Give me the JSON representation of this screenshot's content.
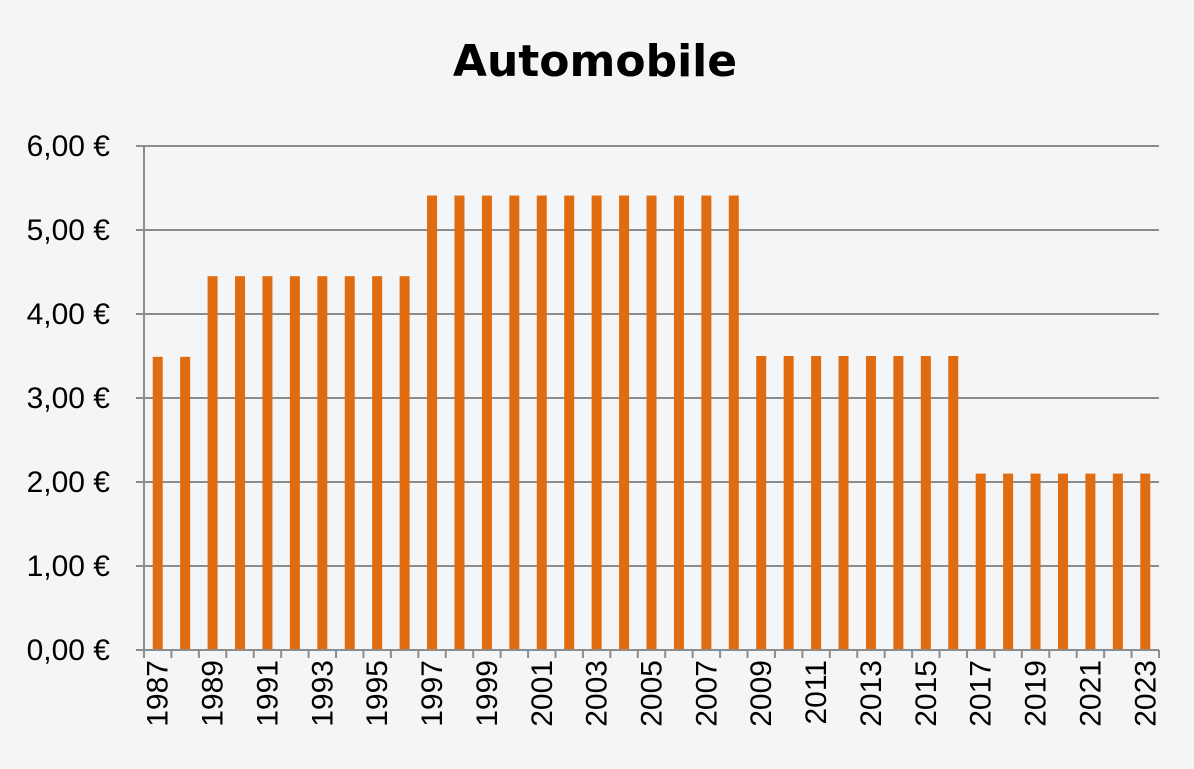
{
  "chart_data": {
    "type": "bar",
    "title": "Automobile",
    "xlabel": "",
    "ylabel": "",
    "categories": [
      "1987",
      "1988",
      "1989",
      "1990",
      "1991",
      "1992",
      "1993",
      "1994",
      "1995",
      "1996",
      "1997",
      "1998",
      "1999",
      "2000",
      "2001",
      "2002",
      "2003",
      "2004",
      "2005",
      "2006",
      "2007",
      "2008",
      "2009",
      "2010",
      "2011",
      "2012",
      "2013",
      "2014",
      "2015",
      "2016",
      "2017",
      "2018",
      "2019",
      "2020",
      "2021",
      "2022",
      "2023"
    ],
    "x_tick_labels": [
      "1987",
      "1989",
      "1991",
      "1993",
      "1995",
      "1997",
      "1999",
      "2001",
      "2003",
      "2005",
      "2007",
      "2009",
      "2011",
      "2013",
      "2015",
      "2017",
      "2019",
      "2021",
      "2023"
    ],
    "series": [
      {
        "values": [
          3.49,
          3.49,
          4.45,
          4.45,
          4.45,
          4.45,
          4.45,
          4.45,
          4.45,
          4.45,
          5.41,
          5.41,
          5.41,
          5.41,
          5.41,
          5.41,
          5.41,
          5.41,
          5.41,
          5.41,
          5.41,
          5.41,
          3.5,
          3.5,
          3.5,
          3.5,
          3.5,
          3.5,
          3.5,
          3.5,
          2.1,
          2.1,
          2.1,
          2.1,
          2.1,
          2.1,
          2.1
        ],
        "color": "#e06c0f"
      }
    ],
    "ylim": [
      0,
      6
    ],
    "y_ticks": [
      0,
      1,
      2,
      3,
      4,
      5,
      6
    ],
    "y_tick_labels": [
      "0,00 €",
      "1,00 €",
      "2,00 €",
      "3,00 €",
      "4,00 €",
      "5,00 €",
      "6,00 €"
    ],
    "grid": true,
    "legend": "none",
    "colors": {
      "background": "#f4f5f7",
      "grid": "#8c8c8c",
      "axis": "#8c8c8c"
    }
  }
}
